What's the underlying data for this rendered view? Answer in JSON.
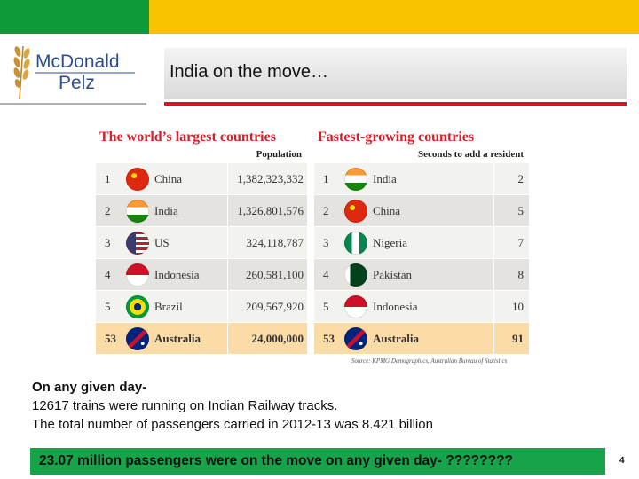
{
  "colors": {
    "header_green": "#0f9a3a",
    "header_yellow": "#f8c400",
    "accent_red": "#e0101e",
    "bar_green": "#16a34a",
    "highlight_row": "#fbdca6"
  },
  "logo": {
    "line1": "McDonald",
    "line2": "Pelz",
    "icon": "wheat-icon"
  },
  "title": "India on the move…",
  "largest": {
    "heading": "The world’s largest countries",
    "column": "Population",
    "rows": [
      {
        "rank": "1",
        "country": "China",
        "value": "1,382,323,332",
        "flag": "china-flag-icon"
      },
      {
        "rank": "2",
        "country": "India",
        "value": "1,326,801,576",
        "flag": "india-flag-icon"
      },
      {
        "rank": "3",
        "country": "US",
        "value": "324,118,787",
        "flag": "us-flag-icon"
      },
      {
        "rank": "4",
        "country": "Indonesia",
        "value": "260,581,100",
        "flag": "indonesia-flag-icon"
      },
      {
        "rank": "5",
        "country": "Brazil",
        "value": "209,567,920",
        "flag": "brazil-flag-icon"
      },
      {
        "rank": "53",
        "country": "Australia",
        "value": "24,000,000",
        "flag": "australia-flag-icon"
      }
    ]
  },
  "fastest": {
    "heading": "Fastest-growing countries",
    "column": "Seconds to add a resident",
    "rows": [
      {
        "rank": "1",
        "country": "India",
        "value": "2",
        "flag": "india-flag-icon"
      },
      {
        "rank": "2",
        "country": "China",
        "value": "5",
        "flag": "china-flag-icon"
      },
      {
        "rank": "3",
        "country": "Nigeria",
        "value": "7",
        "flag": "nigeria-flag-icon"
      },
      {
        "rank": "4",
        "country": "Pakistan",
        "value": "8",
        "flag": "pakistan-flag-icon"
      },
      {
        "rank": "5",
        "country": "Indonesia",
        "value": "10",
        "flag": "indonesia-flag-icon"
      },
      {
        "rank": "53",
        "country": "Australia",
        "value": "91",
        "flag": "australia-flag-icon"
      }
    ]
  },
  "source": "Source: KPMG Demographics, Australian Bureau of Statistics",
  "body": {
    "heading": "On any given day-",
    "line1": "12617 trains were running on Indian Railway tracks.",
    "line2": "The total number of passengers carried in 2012-13 was 8.421 billion"
  },
  "bottom_bar": "23.07 million passengers were on the move on any given day- ????????",
  "slide_number": "4"
}
